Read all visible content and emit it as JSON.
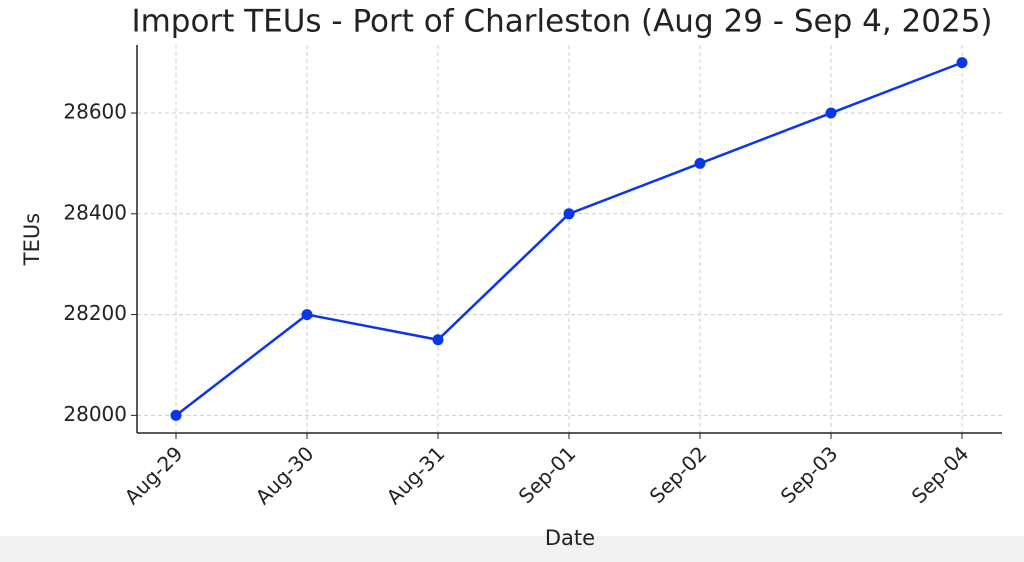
{
  "chart_data": {
    "type": "line",
    "title": "Import TEUs - Port of Charleston (Aug 29 - Sep 4, 2025)",
    "x_label": "Date",
    "y_label": "TEUs",
    "categories": [
      "Aug-29",
      "Aug-30",
      "Aug-31",
      "Sep-01",
      "Sep-02",
      "Sep-03",
      "Sep-04"
    ],
    "series": [
      {
        "name": "TEUs",
        "color": "#0a35e8",
        "values": [
          28000,
          28200,
          28150,
          28400,
          28500,
          28600,
          28700
        ]
      }
    ],
    "ylim": [
      27965,
      28735
    ],
    "yticks": [
      28000,
      28200,
      28400,
      28600
    ],
    "grid": true
  }
}
